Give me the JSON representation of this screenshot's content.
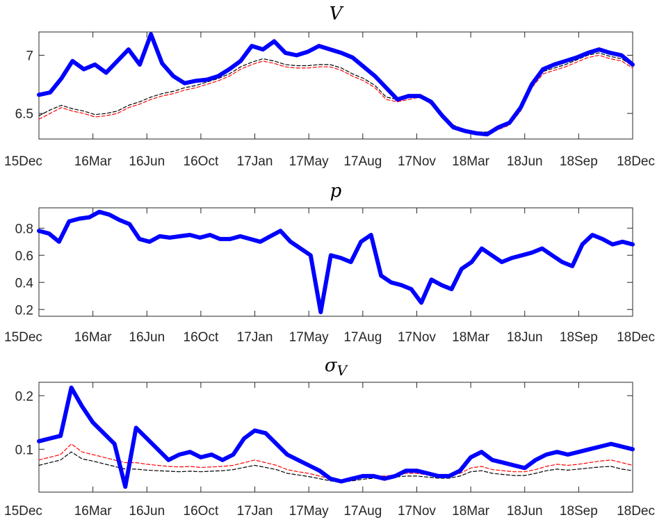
{
  "chart_data": [
    {
      "type": "line",
      "title": "V",
      "x_tick_labels": [
        "15Dec",
        "16Mar",
        "16Jun",
        "16Oct",
        "17Jan",
        "17May",
        "17Aug",
        "17Nov",
        "18Mar",
        "18Jun",
        "18Sep",
        "18Dec"
      ],
      "y_ticks": [
        6.5,
        7
      ],
      "y_tick_labels": [
        "6.5",
        "7"
      ],
      "ylim": [
        6.28,
        7.2
      ],
      "grid": false,
      "legend": "none",
      "series": [
        {
          "color": "#0000ff",
          "style": "solid-thick",
          "values": [
            6.66,
            6.68,
            6.8,
            6.95,
            6.88,
            6.92,
            6.85,
            6.95,
            7.05,
            6.92,
            7.18,
            6.93,
            6.82,
            6.76,
            6.78,
            6.79,
            6.82,
            6.88,
            6.95,
            7.08,
            7.05,
            7.12,
            7.02,
            7.0,
            7.03,
            7.08,
            7.05,
            7.02,
            6.98,
            6.9,
            6.82,
            6.72,
            6.62,
            6.65,
            6.65,
            6.6,
            6.48,
            6.38,
            6.35,
            6.33,
            6.32,
            6.38,
            6.42,
            6.55,
            6.75,
            6.88,
            6.92,
            6.95,
            6.98,
            7.02,
            7.05,
            7.02,
            7.0,
            6.92
          ]
        },
        {
          "color": "#ff0000",
          "style": "dashed",
          "values": [
            6.45,
            6.5,
            6.55,
            6.52,
            6.5,
            6.47,
            6.48,
            6.5,
            6.55,
            6.58,
            6.62,
            6.65,
            6.67,
            6.7,
            6.72,
            6.75,
            6.78,
            6.82,
            6.88,
            6.92,
            6.95,
            6.93,
            6.9,
            6.89,
            6.89,
            6.9,
            6.9,
            6.87,
            6.82,
            6.78,
            6.72,
            6.62,
            6.6,
            6.62,
            6.64,
            6.58,
            6.46,
            6.38,
            6.34,
            6.32,
            6.32,
            6.36,
            6.4,
            6.52,
            6.72,
            6.84,
            6.87,
            6.9,
            6.94,
            6.98,
            7.0,
            6.97,
            6.95,
            6.89
          ]
        },
        {
          "color": "#000000",
          "style": "dashed",
          "values": [
            6.48,
            6.53,
            6.57,
            6.54,
            6.52,
            6.49,
            6.5,
            6.52,
            6.57,
            6.6,
            6.64,
            6.67,
            6.69,
            6.72,
            6.74,
            6.77,
            6.8,
            6.84,
            6.9,
            6.94,
            6.97,
            6.95,
            6.92,
            6.91,
            6.91,
            6.92,
            6.92,
            6.89,
            6.84,
            6.8,
            6.74,
            6.64,
            6.62,
            6.64,
            6.66,
            6.6,
            6.48,
            6.4,
            6.36,
            6.34,
            6.34,
            6.38,
            6.42,
            6.54,
            6.74,
            6.86,
            6.89,
            6.92,
            6.96,
            7.0,
            7.02,
            6.99,
            6.97,
            6.91
          ]
        }
      ]
    },
    {
      "type": "line",
      "title": "p",
      "x_tick_labels": [
        "15Dec",
        "16Mar",
        "16Jun",
        "16Oct",
        "17Jan",
        "17May",
        "17Aug",
        "17Nov",
        "18Mar",
        "18Jun",
        "18Sep",
        "18Dec"
      ],
      "y_ticks": [
        0.2,
        0.4,
        0.6,
        0.8
      ],
      "y_tick_labels": [
        "0.2",
        "0.4",
        "0.6",
        "0.8"
      ],
      "ylim": [
        0.15,
        0.95
      ],
      "grid": false,
      "legend": "none",
      "series": [
        {
          "color": "#0000ff",
          "style": "solid-thick",
          "values": [
            0.78,
            0.76,
            0.7,
            0.85,
            0.87,
            0.88,
            0.92,
            0.9,
            0.86,
            0.83,
            0.72,
            0.7,
            0.74,
            0.73,
            0.74,
            0.75,
            0.73,
            0.75,
            0.72,
            0.72,
            0.74,
            0.72,
            0.7,
            0.74,
            0.78,
            0.7,
            0.65,
            0.6,
            0.18,
            0.6,
            0.58,
            0.55,
            0.7,
            0.75,
            0.45,
            0.4,
            0.38,
            0.35,
            0.25,
            0.42,
            0.38,
            0.35,
            0.5,
            0.55,
            0.65,
            0.6,
            0.55,
            0.58,
            0.6,
            0.62,
            0.65,
            0.6,
            0.55,
            0.52,
            0.68,
            0.75,
            0.72,
            0.68,
            0.7,
            0.68
          ]
        }
      ]
    },
    {
      "type": "line",
      "title": "σV",
      "x_tick_labels": [
        "15Dec",
        "16Mar",
        "16Jun",
        "16Oct",
        "17Jan",
        "17May",
        "17Aug",
        "17Nov",
        "18Mar",
        "18Jun",
        "18Sep",
        "18Dec"
      ],
      "y_ticks": [
        0.1,
        0.2
      ],
      "y_tick_labels": [
        "0.1",
        "0.2"
      ],
      "ylim": [
        0.02,
        0.225
      ],
      "grid": false,
      "legend": "none",
      "series": [
        {
          "color": "#0000ff",
          "style": "solid-thick",
          "values": [
            0.115,
            0.12,
            0.125,
            0.215,
            0.18,
            0.15,
            0.13,
            0.11,
            0.03,
            0.14,
            0.12,
            0.1,
            0.08,
            0.09,
            0.095,
            0.085,
            0.09,
            0.08,
            0.09,
            0.12,
            0.135,
            0.13,
            0.11,
            0.09,
            0.08,
            0.07,
            0.06,
            0.045,
            0.04,
            0.045,
            0.05,
            0.05,
            0.045,
            0.05,
            0.06,
            0.06,
            0.055,
            0.05,
            0.05,
            0.06,
            0.085,
            0.095,
            0.08,
            0.075,
            0.07,
            0.065,
            0.08,
            0.09,
            0.095,
            0.09,
            0.095,
            0.1,
            0.105,
            0.11,
            0.105,
            0.1
          ]
        },
        {
          "color": "#ff0000",
          "style": "dashed",
          "values": [
            0.08,
            0.085,
            0.09,
            0.11,
            0.095,
            0.09,
            0.085,
            0.08,
            0.075,
            0.075,
            0.072,
            0.07,
            0.068,
            0.067,
            0.068,
            0.066,
            0.067,
            0.068,
            0.07,
            0.075,
            0.08,
            0.075,
            0.07,
            0.062,
            0.058,
            0.055,
            0.05,
            0.045,
            0.042,
            0.045,
            0.048,
            0.05,
            0.05,
            0.052,
            0.055,
            0.055,
            0.052,
            0.05,
            0.05,
            0.055,
            0.065,
            0.068,
            0.062,
            0.06,
            0.058,
            0.058,
            0.062,
            0.068,
            0.072,
            0.07,
            0.072,
            0.075,
            0.078,
            0.08,
            0.075,
            0.07
          ]
        },
        {
          "color": "#000000",
          "style": "dashed",
          "values": [
            0.07,
            0.075,
            0.08,
            0.095,
            0.082,
            0.078,
            0.073,
            0.068,
            0.063,
            0.063,
            0.061,
            0.06,
            0.059,
            0.058,
            0.059,
            0.058,
            0.059,
            0.06,
            0.062,
            0.066,
            0.07,
            0.066,
            0.062,
            0.055,
            0.052,
            0.049,
            0.045,
            0.041,
            0.038,
            0.041,
            0.044,
            0.046,
            0.046,
            0.048,
            0.05,
            0.05,
            0.048,
            0.046,
            0.046,
            0.05,
            0.058,
            0.06,
            0.055,
            0.053,
            0.051,
            0.051,
            0.055,
            0.06,
            0.063,
            0.061,
            0.063,
            0.065,
            0.067,
            0.068,
            0.063,
            0.06
          ]
        }
      ]
    }
  ]
}
